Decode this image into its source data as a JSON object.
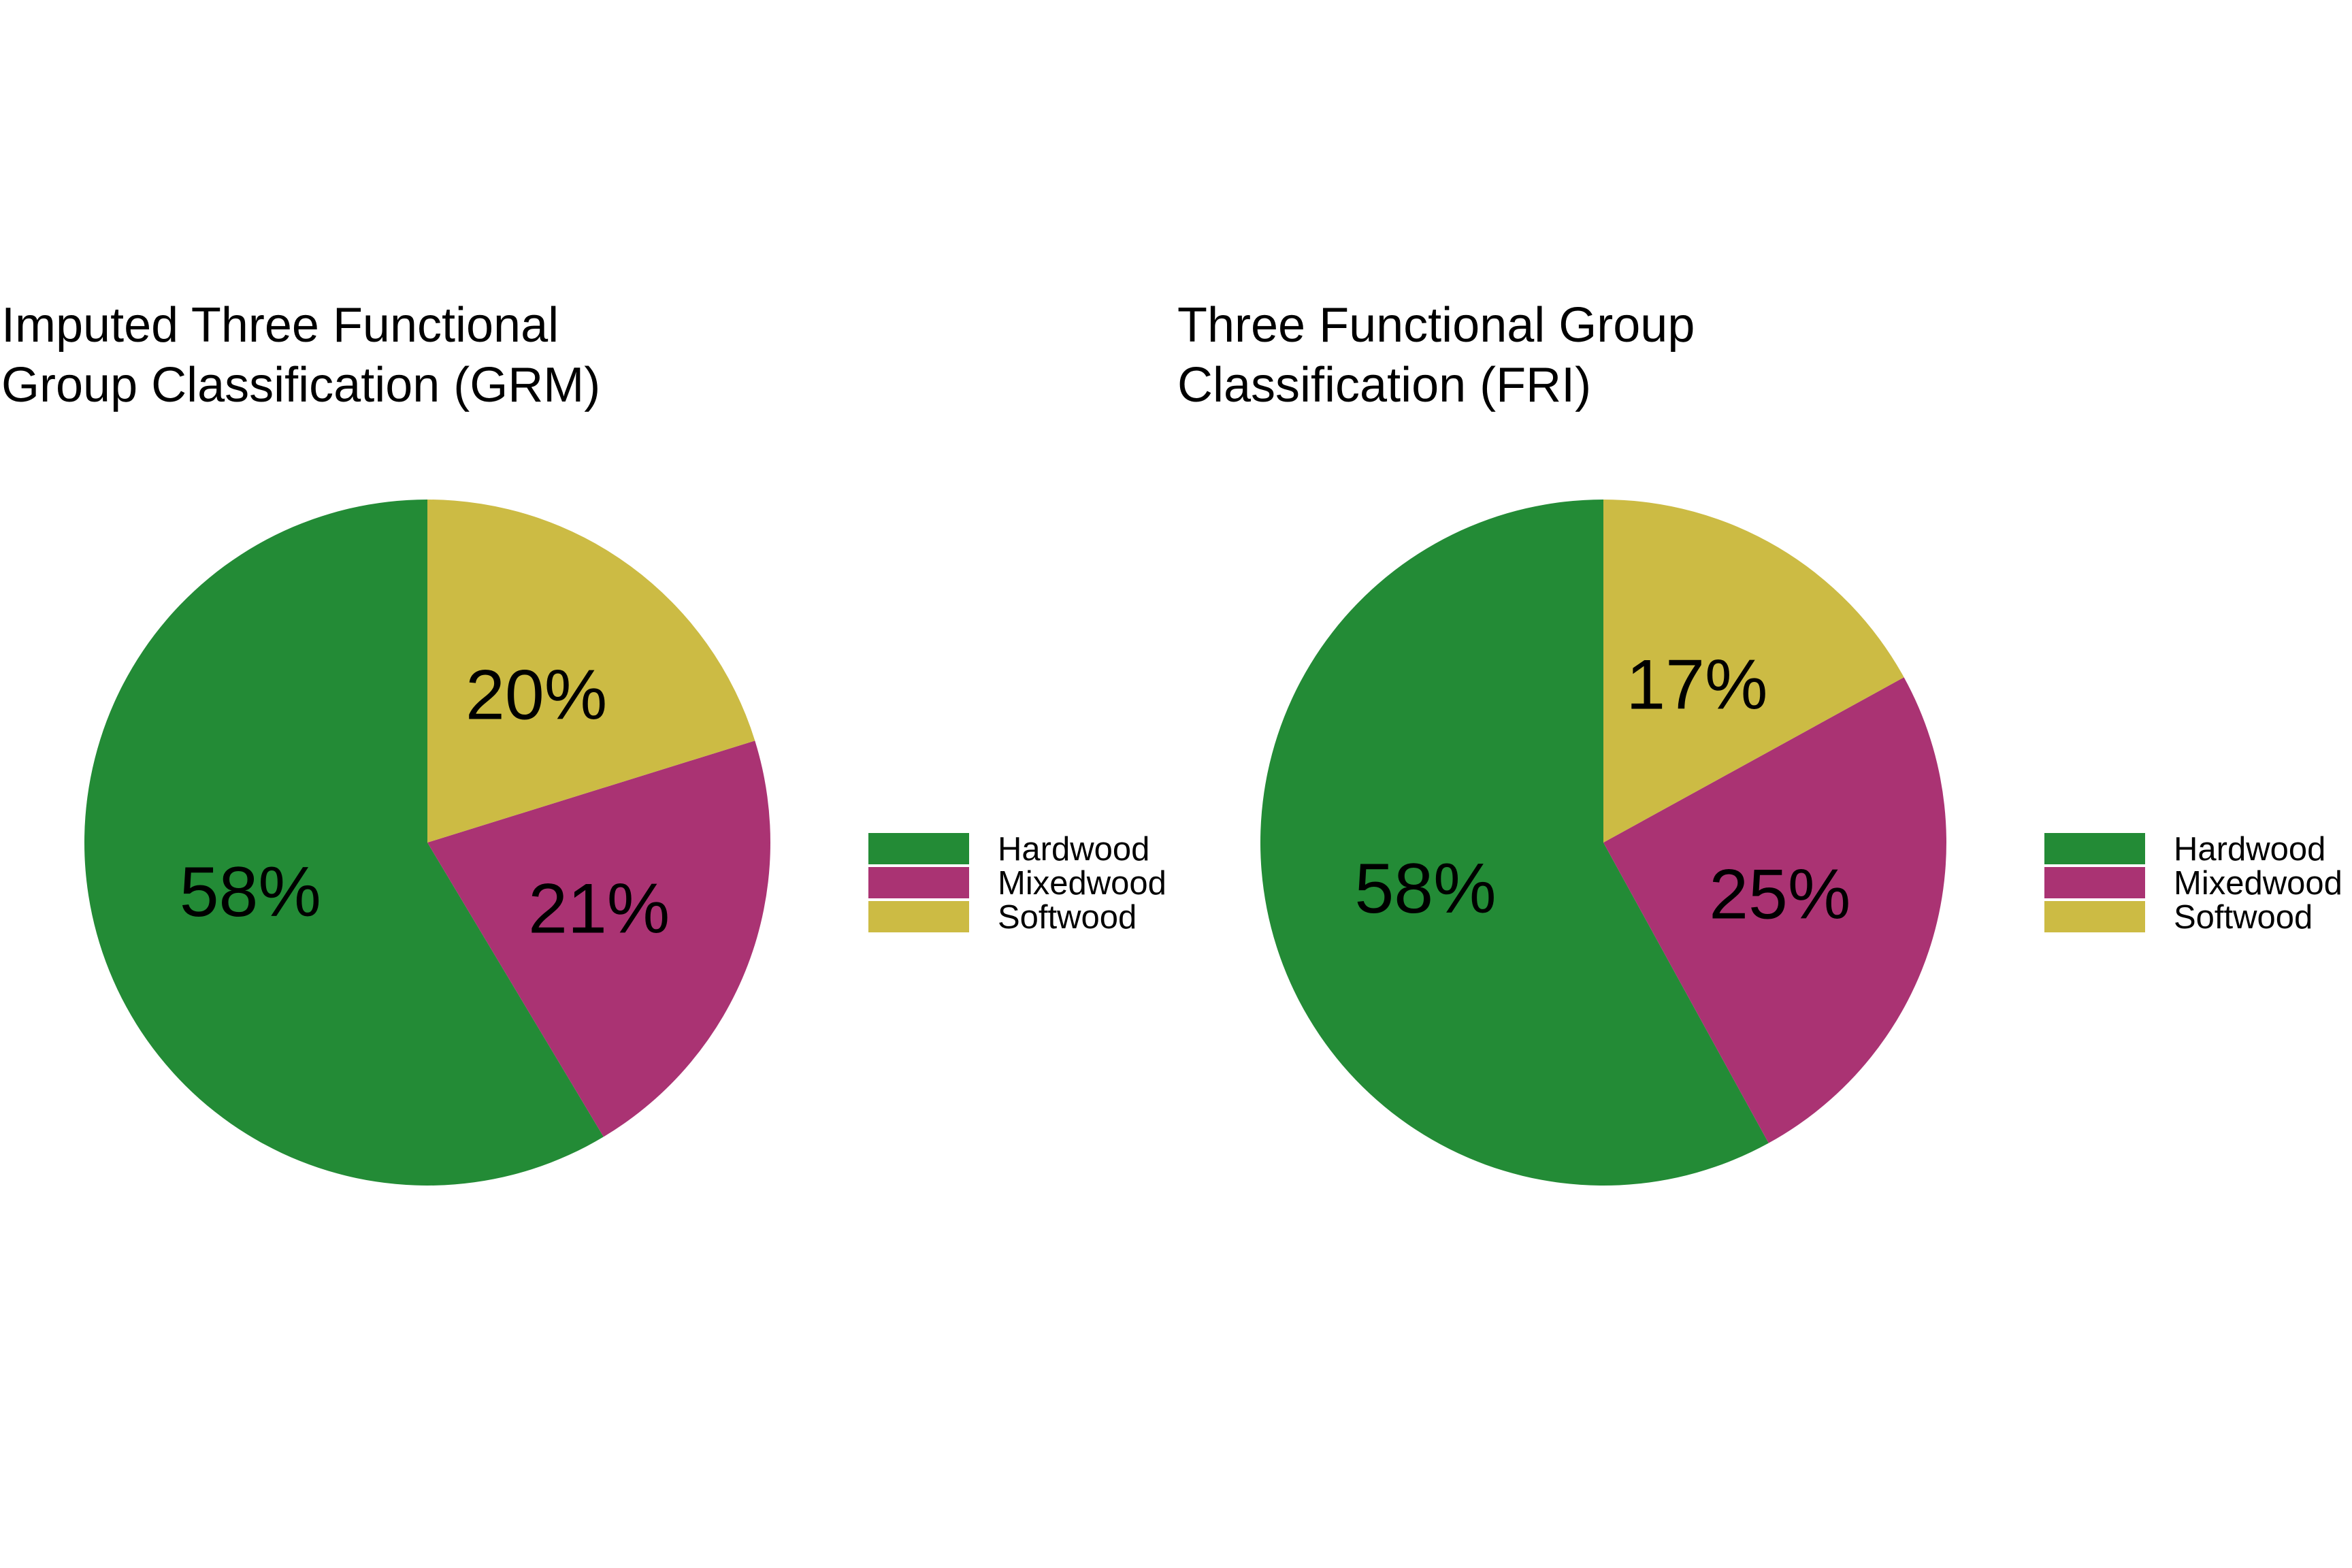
{
  "chart_data": [
    {
      "type": "pie",
      "title_lines": [
        "Imputed Three Functional",
        "Group Classification (GRM)"
      ],
      "categories": [
        "Hardwood",
        "Mixedwood",
        "Softwood"
      ],
      "values": [
        58,
        21,
        20
      ],
      "labels": [
        "58%",
        "21%",
        "20%"
      ],
      "colors": [
        "#238B36",
        "#AA3373",
        "#CCBB44"
      ],
      "start_angle": "12 o'clock",
      "direction": "counterclockwise",
      "legend_position": "right"
    },
    {
      "type": "pie",
      "title_lines": [
        "Three Functional Group",
        "Classification (FRI)"
      ],
      "categories": [
        "Hardwood",
        "Mixedwood",
        "Softwood"
      ],
      "values": [
        58,
        25,
        17
      ],
      "labels": [
        "58%",
        "25%",
        "17%"
      ],
      "colors": [
        "#238B36",
        "#AA3373",
        "#CCBB44"
      ],
      "start_angle": "12 o'clock",
      "direction": "counterclockwise",
      "legend_position": "right"
    }
  ]
}
